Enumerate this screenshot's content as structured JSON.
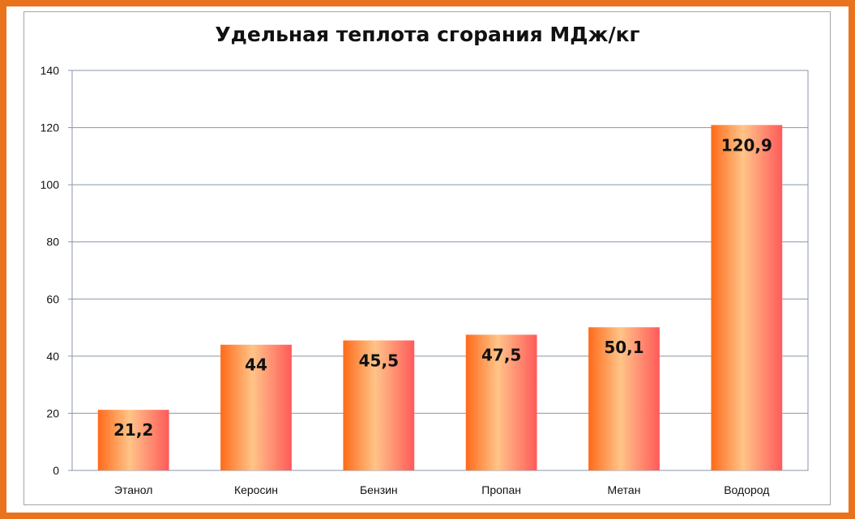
{
  "chart_data": {
    "type": "bar",
    "title": "Удельная теплота сгорания МДж/кг",
    "categories": [
      "Этанол",
      "Керосин",
      "Бензин",
      "Пропан",
      "Метан",
      "Водород"
    ],
    "values": [
      21.2,
      44,
      45.5,
      47.5,
      50.1,
      120.9
    ],
    "value_labels": [
      "21,2",
      "44",
      "45,5",
      "47,5",
      "50,1",
      "120,9"
    ],
    "y_ticks": [
      "0",
      "20",
      "40",
      "60",
      "80",
      "100",
      "120",
      "140"
    ],
    "ylim": [
      0,
      140
    ],
    "grid": true,
    "legend": "none",
    "colors": {
      "border": "#e8731c",
      "bar_edge": "#ff6a1a",
      "bar_center": "#ffc488",
      "bar_right": "#ff5a5a",
      "grid": "#8896a8"
    }
  }
}
